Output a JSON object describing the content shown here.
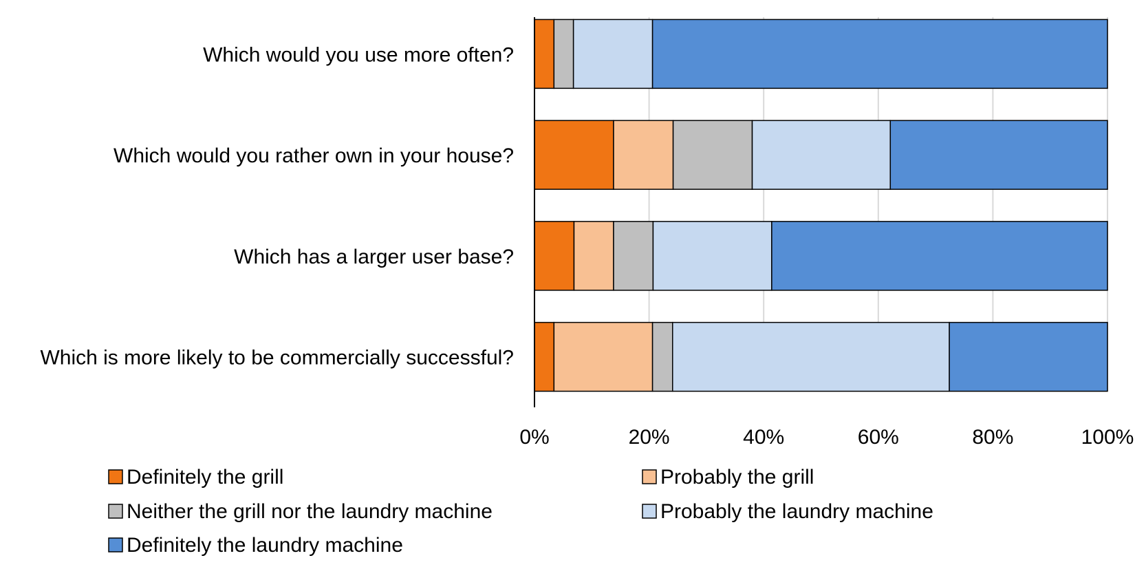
{
  "chart_data": {
    "type": "bar",
    "orientation": "horizontal",
    "stacked": "percent",
    "title": "",
    "xlabel": "",
    "ylabel": "",
    "xlim": [
      0,
      100
    ],
    "x_ticks": [
      0,
      20,
      40,
      60,
      80,
      100
    ],
    "x_tick_labels": [
      "0%",
      "20%",
      "40%",
      "60%",
      "80%",
      "100%"
    ],
    "grid": "vertical",
    "legend_position": "bottom",
    "categories": [
      "Which would you use more often?",
      "Which would you rather own in your house?",
      "Which has a larger user base?",
      "Which is more likely to be commercially successful?"
    ],
    "series": [
      {
        "name": "Definitely the grill",
        "color": "#F07514",
        "values": [
          3.4,
          13.8,
          6.9,
          3.4
        ]
      },
      {
        "name": "Probably the grill",
        "color": "#F8C093",
        "values": [
          0,
          10.4,
          6.9,
          17.2
        ]
      },
      {
        "name": "Neither the grill nor the laundry machine",
        "color": "#BFBFBF",
        "values": [
          3.4,
          13.8,
          6.9,
          3.5
        ]
      },
      {
        "name": "Probably the laundry machine",
        "color": "#C6D9F0",
        "values": [
          13.8,
          24.1,
          20.7,
          48.3
        ]
      },
      {
        "name": "Definitely the laundry machine",
        "color": "#558ED5",
        "values": [
          79.4,
          37.9,
          58.6,
          27.6
        ]
      }
    ]
  }
}
